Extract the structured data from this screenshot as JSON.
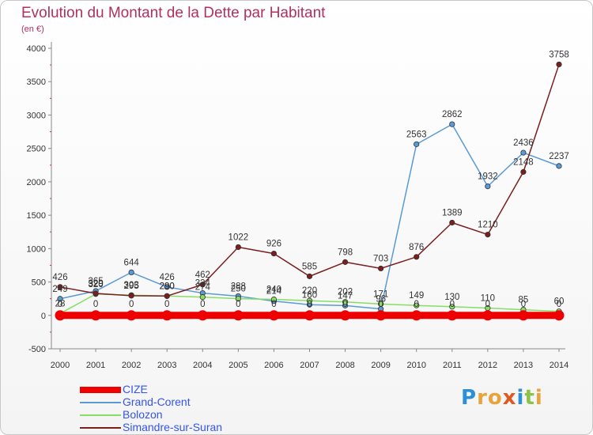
{
  "title": "Evolution du Montant de la Dette par Habitant",
  "subtitle": "(en €)",
  "logo": {
    "letters": [
      "P",
      "r",
      "o",
      "x",
      "i",
      "t",
      "i"
    ],
    "colors": [
      "#2d8fd5",
      "#e8a33a",
      "#e8a33a",
      "#e05a20",
      "#2d8fd5",
      "#8bc34a",
      "#e8a33a"
    ]
  },
  "chart_data": {
    "type": "line",
    "x": [
      "2000",
      "2001",
      "2002",
      "2003",
      "2004",
      "2005",
      "2006",
      "2007",
      "2008",
      "2009",
      "2010",
      "2011",
      "2012",
      "2013",
      "2014"
    ],
    "ylim": [
      -500,
      4000
    ],
    "yticks": [
      "-500",
      "0",
      "500",
      "1000",
      "1500",
      "2000",
      "2500",
      "3000",
      "3500",
      "4000"
    ],
    "grid": false,
    "legend_position": "bottom-left",
    "series": [
      {
        "name": "CIZE",
        "color": "#ee0000",
        "thick": true,
        "values": [
          0,
          0,
          0,
          0,
          0,
          0,
          0,
          0,
          0,
          0,
          0,
          0,
          0,
          0,
          0
        ],
        "labels": [
          "0",
          "0",
          "0",
          "0",
          "0",
          "0",
          "0",
          "0",
          "0",
          "0",
          "0",
          "0",
          "0",
          "0",
          "0"
        ]
      },
      {
        "name": "Grand-Corent",
        "color": "#5a9ad5",
        "values": [
          249,
          365,
          644,
          426,
          334,
          288,
          214,
          160,
          147,
          96,
          2563,
          2862,
          1932,
          2436,
          2237
        ],
        "labels": [
          "249",
          "365",
          "644",
          "426",
          "334",
          "288",
          "214",
          "160",
          "147",
          "96",
          "2563",
          "2862",
          "1932",
          "2436",
          "2237"
        ]
      },
      {
        "name": "Bolozon",
        "color": "#88dd66",
        "values": [
          28,
          320,
          303,
          290,
          274,
          250,
          240,
          220,
          202,
          171,
          149,
          130,
          110,
          85,
          60
        ],
        "labels": [
          "28",
          "320",
          "303",
          "290",
          "274",
          "250",
          "240",
          "220",
          "202",
          "171",
          "149",
          "130",
          "110",
          "85",
          "60"
        ]
      },
      {
        "name": "Simandre-sur-Suran",
        "color": "#7a1e1e",
        "values": [
          426,
          329,
          295,
          290,
          462,
          1022,
          926,
          585,
          798,
          703,
          876,
          1389,
          1210,
          2148,
          3758
        ],
        "labels": [
          "426",
          "329",
          "295",
          "290",
          "462",
          "1022",
          "926",
          "585",
          "798",
          "703",
          "876",
          "1389",
          "1210",
          "2148",
          "3758"
        ]
      }
    ]
  }
}
